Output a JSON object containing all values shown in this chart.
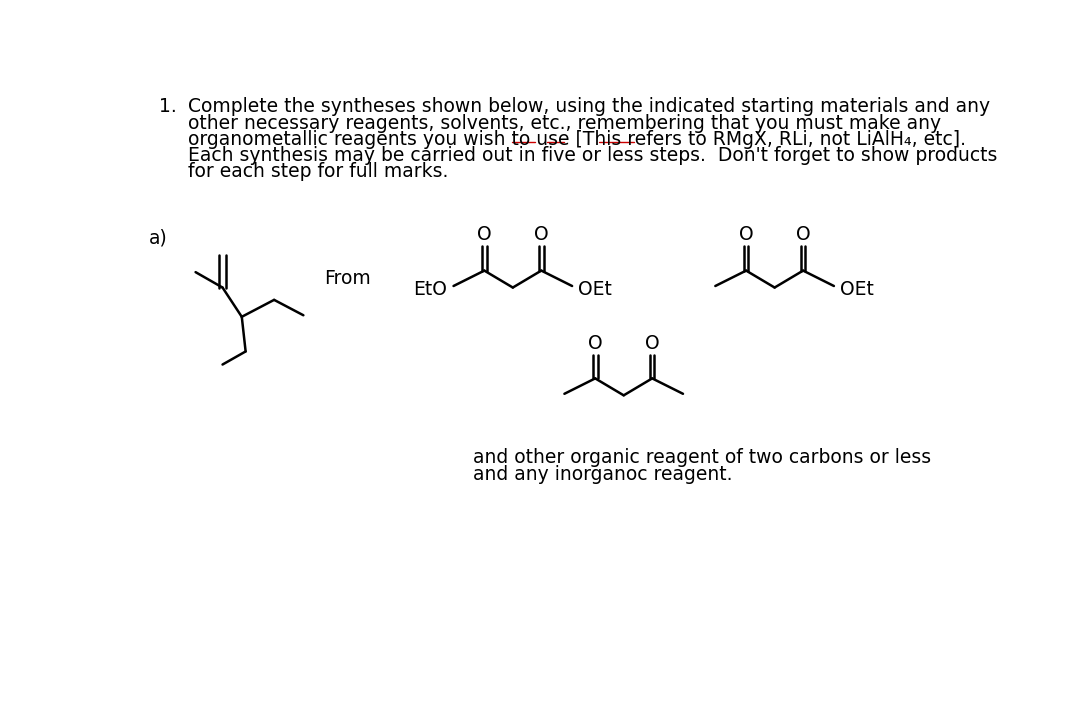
{
  "title_num": "1.",
  "title_text_lines": [
    "Complete the syntheses shown below, using the indicated starting materials and any",
    "other necessary reagents, solvents, etc., remembering that you must make any",
    "organometallic reagents you wish to use [This refers to RMgX, RLi, not LiAlH₄, etc].",
    "Each synthesis may be carried out in five or less steps.  Don't forget to show products",
    "for each step for full marks."
  ],
  "label_a": "a)",
  "from_text": "From",
  "footer_text_lines": [
    "and other organic reagent of two carbons or less",
    "and any inorganoc reagent."
  ],
  "bg_color": "#ffffff",
  "text_color": "#000000",
  "font_size": 13.5,
  "underline_color": "#cc0000"
}
